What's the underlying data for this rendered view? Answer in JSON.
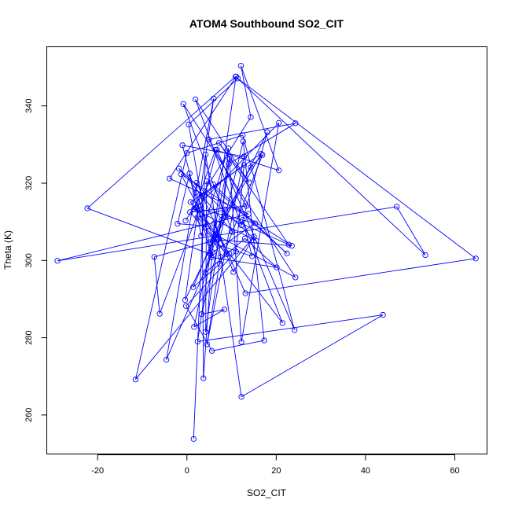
{
  "chart_data": {
    "type": "line",
    "title": "ATOM4 Southbound SO2_CIT",
    "xlabel": "SO2_CIT",
    "ylabel": "Theta (K)",
    "xlim": [
      -31.3,
      67.3
    ],
    "ylim": [
      249.8,
      355.2
    ],
    "x_ticks": [
      -20,
      0,
      20,
      40,
      60
    ],
    "y_ticks": [
      260,
      280,
      300,
      320,
      340
    ],
    "grid": false,
    "line_color": "#0000ff",
    "marker": "open-circle",
    "series": [
      {
        "points": [
          [
            1.5,
            253.8
          ],
          [
            4.2,
            327.4
          ],
          [
            12.2,
            264.7
          ],
          [
            43.9,
            285.9
          ],
          [
            2.4,
            279.0
          ],
          [
            11.0,
            347.6
          ],
          [
            -3.9,
            321.2
          ],
          [
            13.8,
            312.0
          ],
          [
            -29.0,
            299.9
          ],
          [
            47.0,
            313.9
          ],
          [
            53.4,
            301.4
          ],
          [
            10.9,
            347.6
          ],
          [
            -22.3,
            313.5
          ],
          [
            5.3,
            301.6
          ],
          [
            -1.0,
            329.8
          ],
          [
            12.8,
            326.9
          ],
          [
            4.5,
            278.3
          ],
          [
            7.5,
            300.9
          ],
          [
            2.0,
            317.6
          ],
          [
            6.0,
            341.9
          ],
          [
            -0.4,
            289.8
          ],
          [
            18.0,
            333.2
          ],
          [
            12.2,
            309.1
          ],
          [
            1.9,
            341.7
          ],
          [
            13.9,
            320.2
          ],
          [
            7.2,
            330.4
          ],
          [
            22.8,
            304.1
          ],
          [
            8.6,
            311.4
          ],
          [
            -0.8,
            340.5
          ],
          [
            24.3,
            295.6
          ],
          [
            6.4,
            306.7
          ],
          [
            4.7,
            308.9
          ],
          [
            -2.1,
            309.5
          ],
          [
            0.6,
            322.5
          ],
          [
            3.2,
            306.4
          ],
          [
            9.3,
            329.0
          ],
          [
            7.8,
            310.5
          ],
          [
            4.1,
            296.8
          ],
          [
            13.0,
            305.7
          ],
          [
            20.1,
            298.2
          ],
          [
            5.5,
            300.8
          ],
          [
            0.4,
            335.2
          ],
          [
            11.4,
            347.1
          ],
          [
            64.7,
            300.5
          ],
          [
            13.1,
            291.5
          ],
          [
            2.2,
            320.1
          ],
          [
            -4.6,
            274.3
          ],
          [
            5.8,
            302.1
          ],
          [
            15.3,
            309.6
          ],
          [
            2.0,
            313.6
          ],
          [
            20.6,
            335.6
          ],
          [
            12.2,
            278.9
          ],
          [
            9.5,
            326.4
          ],
          [
            1.6,
            282.8
          ],
          [
            8.4,
            287.3
          ],
          [
            3.3,
            286.1
          ],
          [
            12.6,
            330.8
          ],
          [
            17.3,
            279.3
          ],
          [
            5.6,
            276.6
          ],
          [
            -0.2,
            288.2
          ],
          [
            11.0,
            302.3
          ],
          [
            12.8,
            324.7
          ],
          [
            3.4,
            316.7
          ],
          [
            3.7,
            269.5
          ],
          [
            6.1,
            309.6
          ],
          [
            10.4,
            297.0
          ],
          [
            15.0,
            306.2
          ],
          [
            -11.5,
            269.2
          ],
          [
            0.0,
            327.8
          ],
          [
            12.5,
            332.4
          ],
          [
            24.1,
            282.0
          ],
          [
            6.7,
            328.7
          ],
          [
            4.0,
            317.0
          ],
          [
            -6.1,
            286.2
          ],
          [
            -7.3,
            300.9
          ],
          [
            7.1,
            305.5
          ],
          [
            0.8,
            315.1
          ],
          [
            16.6,
            327.6
          ],
          [
            5.9,
            305.4
          ],
          [
            23.5,
            303.8
          ],
          [
            -1.3,
            322.3
          ],
          [
            2.8,
            313.2
          ],
          [
            9.5,
            301.8
          ],
          [
            21.4,
            283.8
          ],
          [
            12.5,
            310.5
          ],
          [
            14.6,
            301.1
          ],
          [
            5.1,
            304.7
          ],
          [
            14.3,
            324.1
          ],
          [
            16.9,
            327.3
          ],
          [
            7.4,
            299.1
          ],
          [
            1.4,
            293.1
          ],
          [
            8.6,
            313.2
          ],
          [
            2.4,
            311.2
          ],
          [
            8.9,
            301.6
          ],
          [
            0.7,
            312.5
          ],
          [
            13.3,
            314.1
          ],
          [
            4.9,
            331.3
          ],
          [
            24.3,
            335.5
          ],
          [
            9.4,
            325.0
          ],
          [
            4.2,
            281.5
          ],
          [
            4.4,
            320.5
          ],
          [
            22.4,
            301.8
          ],
          [
            5.9,
            319.7
          ],
          [
            10.2,
            307.4
          ],
          [
            -1.8,
            323.8
          ],
          [
            15.5,
            305.1
          ],
          [
            1.6,
            313.3
          ],
          [
            6.4,
            328.6
          ],
          [
            20.6,
            323.3
          ],
          [
            12.1,
            350.4
          ],
          [
            14.3,
            337.1
          ],
          [
            -0.3,
            310.3
          ]
        ]
      }
    ]
  }
}
